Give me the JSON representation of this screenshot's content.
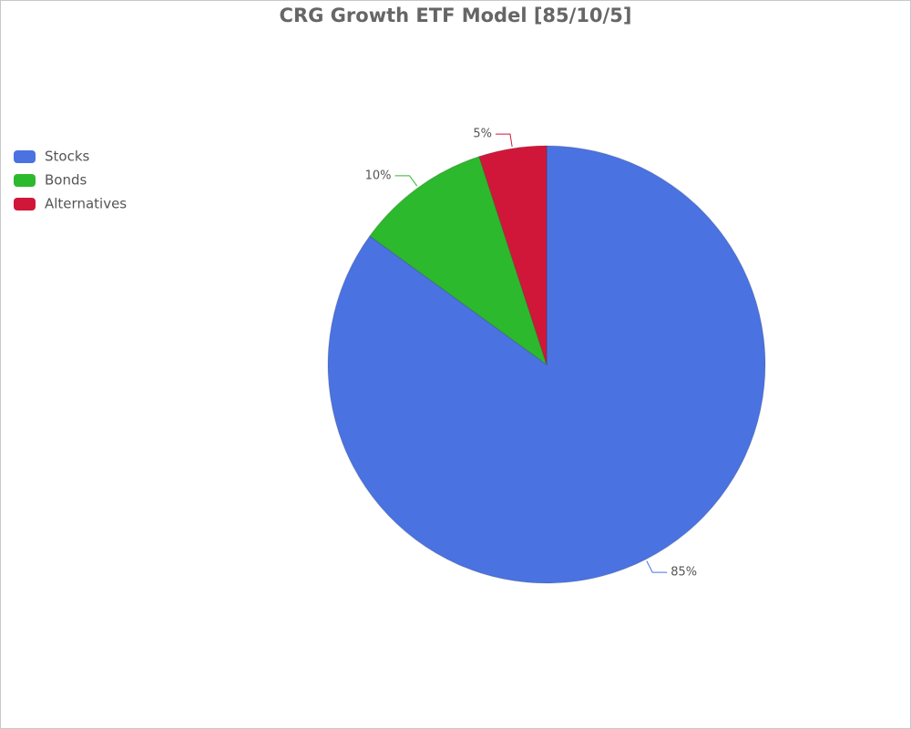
{
  "chart_data": {
    "type": "pie",
    "title": "CRG Growth ETF Model [85/10/5]",
    "categories": [
      "Stocks",
      "Bonds",
      "Alternatives"
    ],
    "values": [
      85,
      10,
      5
    ],
    "value_labels": [
      "85%",
      "10%",
      "5%"
    ],
    "colors": [
      "#4a72e0",
      "#2db92d",
      "#d0173a"
    ],
    "legend": "top-left"
  }
}
